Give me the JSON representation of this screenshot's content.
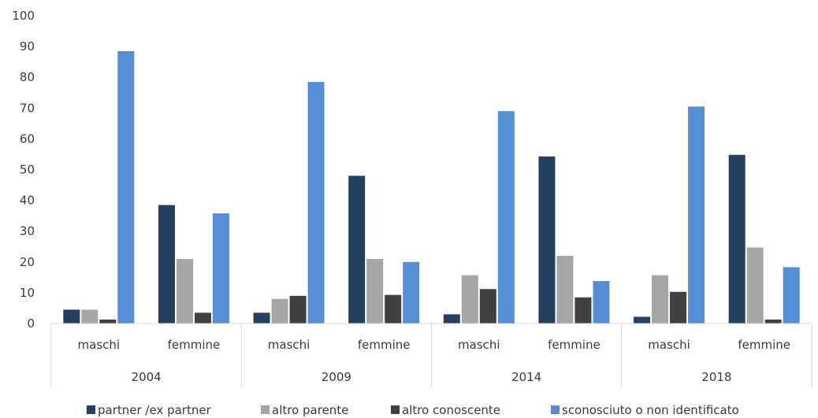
{
  "chart_data": {
    "type": "bar",
    "groups": [
      "2004",
      "2009",
      "2014",
      "2018"
    ],
    "subcategories": [
      "maschi",
      "femmine"
    ],
    "categories": [
      "2004 maschi",
      "2004 femmine",
      "2009 maschi",
      "2009 femmine",
      "2014 maschi",
      "2014 femmine",
      "2018 maschi",
      "2018 femmine"
    ],
    "series": [
      {
        "name": "partner /ex partner",
        "color": "#243f60",
        "values": [
          4.5,
          38.5,
          3.5,
          48,
          3,
          54.3,
          2.2,
          54.8
        ]
      },
      {
        "name": "altro parente",
        "color": "#a6a6a6",
        "values": [
          4.5,
          21,
          8,
          21,
          15.7,
          22,
          15.7,
          24.7
        ]
      },
      {
        "name": "altro conoscente",
        "color": "#404040",
        "values": [
          1.3,
          3.5,
          9,
          9.3,
          11.2,
          8.5,
          10.3,
          1.3
        ]
      },
      {
        "name": "sconosciuto o non identificato",
        "color": "#558ed5",
        "values": [
          88.5,
          35.8,
          78.5,
          20,
          69,
          13.8,
          70.5,
          18.3
        ]
      }
    ],
    "ylim": [
      0,
      100
    ],
    "yticks": [
      0,
      10,
      20,
      30,
      40,
      50,
      60,
      70,
      80,
      90,
      100
    ],
    "grid": false,
    "legend_position": "bottom"
  }
}
